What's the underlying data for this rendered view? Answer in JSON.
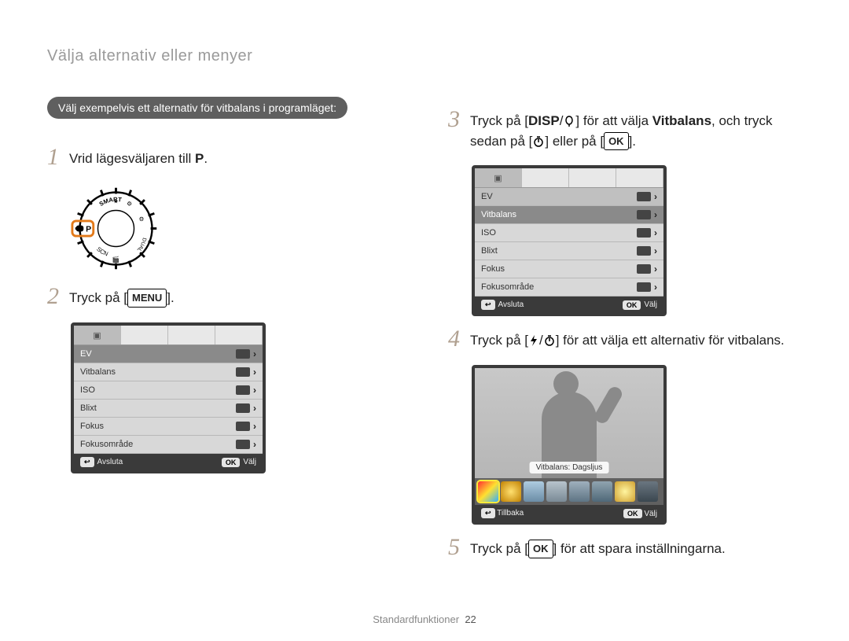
{
  "breadcrumb": "Välja alternativ eller menyer",
  "pill": "Välj exempelvis ett alternativ för vitbalans i programläget:",
  "step1": {
    "text_before": "Vrid lägesväljaren till ",
    "mode": "P",
    "period": "."
  },
  "step2": {
    "prefix": "Tryck på [",
    "btn": "MENU",
    "suffix": "]."
  },
  "step3": {
    "a": "Tryck på [",
    "disp": "DISP",
    "b": "/",
    "c": "] för att välja ",
    "bold": "Vitbalans",
    "d": ", och tryck sedan på [",
    "e": "] eller på [",
    "ok": "OK",
    "f": "]."
  },
  "step4": {
    "a": "Tryck på [",
    "b": "/",
    "c": "] för att välja ett alternativ för vitbalans."
  },
  "step5": {
    "a": "Tryck på [",
    "ok": "OK",
    "b": "] för att spara inställningarna."
  },
  "menu": {
    "rows": [
      {
        "label": "EV"
      },
      {
        "label": "Vitbalans"
      },
      {
        "label": "ISO"
      },
      {
        "label": "Blixt"
      },
      {
        "label": "Fokus"
      },
      {
        "label": "Fokusområde"
      }
    ],
    "footer_left": "Avsluta",
    "footer_right": "Välj",
    "ok_key": "OK",
    "back_key": "↩"
  },
  "wb": {
    "caption": "Vitbalans: Dagsljus",
    "footer_left": "Tillbaka",
    "footer_right": "Välj",
    "options": [
      {
        "bg": "linear-gradient(135deg,#ff3030,#ffe030,#30b0ff)",
        "selected": true
      },
      {
        "bg": "radial-gradient(circle,#ffe070,#c08000)"
      },
      {
        "bg": "linear-gradient(#aecbe0,#6b8da6)"
      },
      {
        "bg": "linear-gradient(#b8c4cc,#7a8a96)"
      },
      {
        "bg": "linear-gradient(#9fb0bd,#5e7484)"
      },
      {
        "bg": "linear-gradient(#90a4b0,#4f6878)"
      },
      {
        "bg": "radial-gradient(circle,#fff5a0,#d0a030)"
      },
      {
        "bg": "linear-gradient(#6a7680,#3b4750)"
      }
    ]
  },
  "dial": {
    "labels": {
      "top": "SMART",
      "left": "P",
      "bottom": "SCN",
      "right": "DUAL"
    }
  },
  "footer": {
    "section": "Standardfunktioner",
    "page": "22"
  },
  "colors": {
    "pill_bg": "#5f5f5f",
    "step_num": "#b0a090",
    "lcd_border": "#3a3a3a",
    "selected_row": "#8a8a8a",
    "highlight": "#e37a1a"
  }
}
